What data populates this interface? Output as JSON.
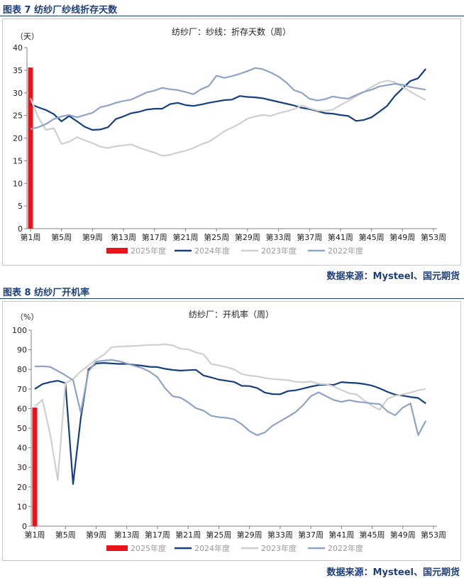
{
  "figures": [
    {
      "title": "图表 7 纺纱厂纱线折存天数",
      "source": "数据来源：Mysteel、国元期货"
    },
    {
      "title": "图表 8 纺纱厂开机率",
      "source": "数据来源：Mysteel、国元期货"
    }
  ],
  "colors": {
    "2025": "#e8141b",
    "2024": "#14407f",
    "2023": "#cfcfcf",
    "2022": "#8ea4c6",
    "accent": "#1f3f7a"
  },
  "chart_data": [
    {
      "type": "line",
      "title": "纺纱厂：纱线：折存天数（周）",
      "unit_label": "（天）",
      "ylim": [
        0,
        40
      ],
      "yticks": [
        0,
        5,
        10,
        15,
        20,
        25,
        30,
        35,
        40
      ],
      "x": [
        1,
        2,
        3,
        4,
        5,
        6,
        7,
        8,
        9,
        10,
        11,
        12,
        13,
        14,
        15,
        16,
        17,
        18,
        19,
        20,
        21,
        22,
        23,
        24,
        25,
        26,
        27,
        28,
        29,
        30,
        31,
        32,
        33,
        34,
        35,
        36,
        37,
        38,
        39,
        40,
        41,
        42,
        43,
        44,
        45,
        46,
        47,
        48,
        49,
        50,
        51,
        52,
        53
      ],
      "xtick_labels": [
        "第1周",
        "第5周",
        "第9周",
        "第13周",
        "第17周",
        "第21周",
        "第25周",
        "第29周",
        "第33周",
        "第37周",
        "第41周",
        "第45周",
        "第49周",
        "第53周"
      ],
      "grid": false,
      "legend_position": "bottom",
      "series": [
        {
          "name": "2025年度",
          "kind": "bar",
          "color_key": "2025",
          "x": [
            1
          ],
          "values": [
            35.6
          ]
        },
        {
          "name": "2024年度",
          "kind": "line",
          "color_key": "2024",
          "values": [
            27.5,
            26.8,
            26.2,
            25.3,
            23.7,
            24.9,
            23.7,
            22.5,
            21.8,
            21.9,
            22.4,
            24.2,
            24.8,
            25.5,
            25.8,
            26.3,
            26.5,
            26.5,
            27.5,
            27.8,
            27.3,
            27.1,
            27.4,
            27.8,
            28.1,
            28.4,
            28.5,
            29.3,
            29.1,
            29.0,
            28.8,
            28.4,
            28.0,
            27.6,
            27.2,
            26.7,
            26.4,
            26.0,
            25.5,
            25.4,
            25.1,
            24.9,
            23.8,
            24.0,
            24.6,
            25.8,
            27.1,
            29.3,
            31.0,
            32.6,
            33.2,
            35.3,
            null
          ]
        },
        {
          "name": "2023年度",
          "kind": "line",
          "color_key": "2023",
          "values": [
            28.8,
            24.6,
            21.8,
            22.2,
            18.7,
            19.2,
            20.2,
            19.5,
            18.9,
            18.1,
            17.8,
            18.2,
            18.4,
            18.6,
            17.9,
            17.3,
            16.8,
            16.1,
            16.3,
            16.8,
            17.2,
            17.8,
            18.6,
            19.2,
            20.3,
            21.5,
            22.3,
            23.2,
            24.3,
            24.8,
            25.1,
            24.9,
            25.5,
            25.9,
            26.4,
            27.2,
            26.6,
            26.1,
            26.0,
            26.3,
            27.3,
            28.2,
            29.2,
            30.2,
            31.3,
            32.2,
            32.7,
            32.4,
            31.3,
            30.3,
            29.3,
            28.4,
            null
          ]
        },
        {
          "name": "2022年度",
          "kind": "line",
          "color_key": "2022",
          "values": [
            22.0,
            22.4,
            23.1,
            24.2,
            24.8,
            25.1,
            24.6,
            25.1,
            25.6,
            26.8,
            27.2,
            27.8,
            28.2,
            28.5,
            29.3,
            30.1,
            30.5,
            31.1,
            30.8,
            30.6,
            30.2,
            29.7,
            30.8,
            31.5,
            33.8,
            33.3,
            33.7,
            34.2,
            34.8,
            35.5,
            35.2,
            34.5,
            33.6,
            32.3,
            30.6,
            30.0,
            28.7,
            28.3,
            28.6,
            29.2,
            28.9,
            28.7,
            29.5,
            30.2,
            30.7,
            31.4,
            31.7,
            32.0,
            31.8,
            31.3,
            31.0,
            30.7,
            null
          ]
        }
      ]
    },
    {
      "type": "line",
      "title": "纺纱厂：开机率（周）",
      "unit_label": "（%）",
      "ylim": [
        0,
        100
      ],
      "yticks": [
        0,
        10,
        20,
        30,
        40,
        50,
        60,
        70,
        80,
        90,
        100
      ],
      "x": [
        1,
        2,
        3,
        4,
        5,
        6,
        7,
        8,
        9,
        10,
        11,
        12,
        13,
        14,
        15,
        16,
        17,
        18,
        19,
        20,
        21,
        22,
        23,
        24,
        25,
        26,
        27,
        28,
        29,
        30,
        31,
        32,
        33,
        34,
        35,
        36,
        37,
        38,
        39,
        40,
        41,
        42,
        43,
        44,
        45,
        46,
        47,
        48,
        49,
        50,
        51,
        52,
        53
      ],
      "xtick_labels": [
        "第1周",
        "第5周",
        "第9周",
        "第13周",
        "第17周",
        "第21周",
        "第25周",
        "第29周",
        "第33周",
        "第37周",
        "第41周",
        "第45周",
        "第49周",
        "第53周"
      ],
      "grid": false,
      "legend_position": "bottom",
      "series": [
        {
          "name": "2025年度",
          "kind": "bar",
          "color_key": "2025",
          "x": [
            1
          ],
          "values": [
            60.5
          ]
        },
        {
          "name": "2024年度",
          "kind": "line",
          "color_key": "2024",
          "values": [
            70.0,
            72.5,
            73.5,
            74.2,
            73.0,
            21.5,
            55.0,
            80.0,
            83.0,
            83.3,
            83.0,
            82.8,
            82.8,
            82.3,
            81.9,
            81.3,
            81.2,
            80.3,
            79.7,
            79.4,
            79.6,
            79.8,
            76.9,
            75.9,
            74.8,
            74.2,
            73.6,
            71.6,
            71.5,
            70.5,
            68.2,
            67.4,
            67.3,
            68.9,
            69.3,
            70.2,
            71.2,
            72.0,
            72.2,
            72.1,
            73.5,
            73.2,
            73.0,
            72.5,
            71.7,
            70.3,
            68.5,
            67.1,
            66.6,
            65.9,
            65.4,
            62.6,
            null
          ]
        },
        {
          "name": "2023年度",
          "kind": "line",
          "color_key": "2023",
          "values": [
            61.0,
            64.5,
            47.0,
            23.5,
            73.0,
            75.0,
            79.0,
            82.0,
            85.0,
            87.5,
            91.3,
            91.6,
            91.8,
            92.0,
            92.2,
            92.5,
            92.5,
            92.8,
            92.3,
            90.5,
            90.2,
            88.7,
            87.7,
            82.8,
            82.0,
            81.2,
            80.0,
            77.6,
            76.9,
            76.4,
            75.6,
            75.1,
            74.8,
            74.5,
            73.7,
            73.4,
            73.8,
            72.6,
            72.4,
            71.3,
            69.5,
            67.8,
            67.2,
            64.1,
            61.4,
            59.4,
            65.0,
            66.5,
            67.3,
            68.2,
            69.3,
            70.0,
            null
          ]
        },
        {
          "name": "2022年度",
          "kind": "line",
          "color_key": "2022",
          "values": [
            81.5,
            81.6,
            81.3,
            79.2,
            77.0,
            74.5,
            58.0,
            79.0,
            84.0,
            84.5,
            84.8,
            84.2,
            83.0,
            81.8,
            80.6,
            78.8,
            76.0,
            70.4,
            66.3,
            65.6,
            63.2,
            60.2,
            59.0,
            56.3,
            55.6,
            55.3,
            54.5,
            52.0,
            48.5,
            46.4,
            47.8,
            51.2,
            53.5,
            55.8,
            58.2,
            61.8,
            66.3,
            68.3,
            66.3,
            64.4,
            63.4,
            64.3,
            63.5,
            63.1,
            62.6,
            62.3,
            58.5,
            56.6,
            60.5,
            62.6,
            46.4,
            53.8,
            null
          ]
        }
      ]
    }
  ]
}
